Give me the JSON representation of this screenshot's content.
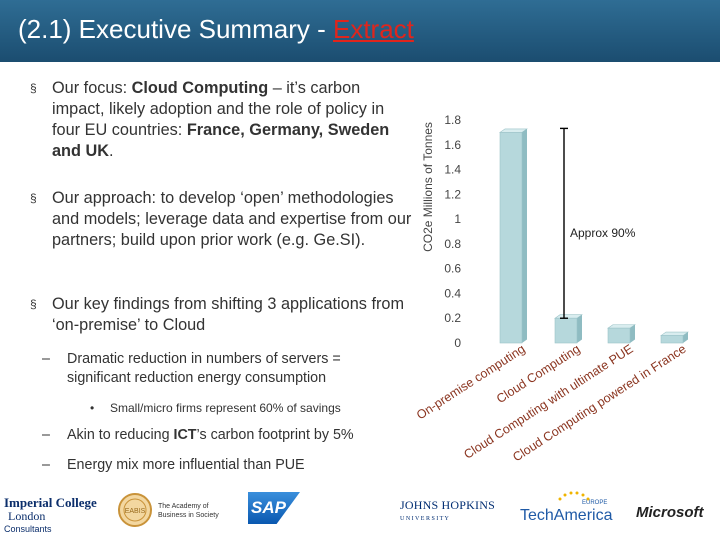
{
  "header": {
    "title_main": "(2.1) Executive Summary - ",
    "title_extract": "Extract"
  },
  "bullets": {
    "focus": {
      "pre": "Our focus: ",
      "bold1": "Cloud Computing",
      "mid": " – it’s carbon impact, likely adoption and the role of policy in four EU countries: ",
      "bold2": "France, Germany, Sweden and UK",
      "post": "."
    },
    "approach": "Our approach: to develop ‘open’ methodologies and models; leverage data and expertise from our partners; build upon prior work (e.g. Ge.SI).",
    "findings": "Our key findings from shifting 3 applications from ‘on-premise’ to Cloud",
    "sub1": "Dramatic reduction in numbers of servers = significant reduction energy consumption",
    "sub1_detail": "Small/micro firms represent 60% of savings",
    "sub2_pre": "Akin to reducing ",
    "sub2_bold": "ICT",
    "sub2_post": "’s carbon footprint by 5%",
    "sub3": "Energy mix more influential than PUE",
    "bullet_mark": "§",
    "dash_mark": "–",
    "dot_mark": "•"
  },
  "chart_data": {
    "type": "bar",
    "ylabel": "CO2e Millions of Tonnes",
    "ylim": [
      0,
      1.8
    ],
    "yticks": [
      "0",
      "0.2",
      "0.4",
      "0.6",
      "0.8",
      "1",
      "1.2",
      "1.4",
      "1.6",
      "1.8"
    ],
    "categories": [
      "On-premise computing",
      "Cloud Computing",
      "Cloud Computing with ultimate PUE",
      "Cloud Computing powered in France"
    ],
    "values": [
      1.7,
      0.2,
      0.12,
      0.06
    ],
    "annotation": "Approx 90%",
    "bar_color": "#b6d8dc"
  },
  "logos": {
    "imperial_line1": "Imperial College",
    "imperial_line2": "London",
    "imperial_line3": "Consultants",
    "academy_line1": "The Academy of",
    "academy_line2": "Business in Society",
    "academy_badge": "EABIS",
    "sap": "SAP",
    "jhu_line1": "JOHNS HOPKINS",
    "jhu_line2": "U N I V E R S I T Y",
    "techamerica_small": "EUROPE",
    "techamerica": "TechAmerica",
    "microsoft": "Microsoft"
  }
}
